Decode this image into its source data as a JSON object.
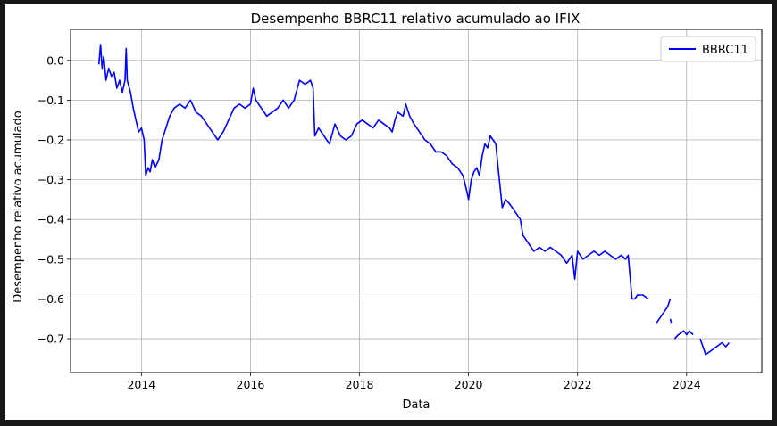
{
  "chart_data": {
    "type": "line",
    "title": "Desempenho BBRC11 relativo acumulado ao IFIX",
    "xlabel": "Data",
    "ylabel": "Desempenho relativo acumulado",
    "xlim": [
      2012.7,
      2025.38
    ],
    "ylim": [
      -0.785,
      0.078
    ],
    "xticks": [
      2014,
      2016,
      2018,
      2020,
      2022,
      2024
    ],
    "xtick_labels": [
      "2014",
      "2016",
      "2018",
      "2020",
      "2022",
      "2024"
    ],
    "yticks": [
      0.0,
      -0.1,
      -0.2,
      -0.3,
      -0.4,
      -0.5,
      -0.6,
      -0.7
    ],
    "ytick_labels": [
      "0.0",
      "−0.1",
      "−0.2",
      "−0.3",
      "−0.4",
      "−0.5",
      "−0.6",
      "−0.7"
    ],
    "grid": true,
    "legend_position": "top-right",
    "series": [
      {
        "name": "BBRC11",
        "color": "#0000ff",
        "segments": [
          [
            [
              2013.22,
              -0.01
            ],
            [
              2013.25,
              0.04
            ],
            [
              2013.28,
              -0.02
            ],
            [
              2013.31,
              0.01
            ],
            [
              2013.35,
              -0.05
            ],
            [
              2013.4,
              -0.02
            ],
            [
              2013.45,
              -0.04
            ],
            [
              2013.5,
              -0.03
            ],
            [
              2013.55,
              -0.07
            ],
            [
              2013.6,
              -0.05
            ],
            [
              2013.65,
              -0.08
            ],
            [
              2013.7,
              -0.05
            ],
            [
              2013.72,
              0.03
            ],
            [
              2013.74,
              -0.05
            ],
            [
              2013.8,
              -0.08
            ],
            [
              2013.85,
              -0.12
            ],
            [
              2013.9,
              -0.15
            ],
            [
              2013.95,
              -0.18
            ],
            [
              2014.0,
              -0.17
            ],
            [
              2014.05,
              -0.2
            ],
            [
              2014.08,
              -0.29
            ],
            [
              2014.12,
              -0.27
            ],
            [
              2014.16,
              -0.28
            ],
            [
              2014.2,
              -0.25
            ],
            [
              2014.25,
              -0.27
            ],
            [
              2014.32,
              -0.25
            ],
            [
              2014.38,
              -0.2
            ],
            [
              2014.45,
              -0.17
            ],
            [
              2014.52,
              -0.14
            ],
            [
              2014.6,
              -0.12
            ],
            [
              2014.7,
              -0.11
            ],
            [
              2014.8,
              -0.12
            ],
            [
              2014.9,
              -0.1
            ],
            [
              2015.0,
              -0.13
            ],
            [
              2015.1,
              -0.14
            ],
            [
              2015.2,
              -0.16
            ],
            [
              2015.3,
              -0.18
            ],
            [
              2015.4,
              -0.2
            ],
            [
              2015.5,
              -0.18
            ],
            [
              2015.6,
              -0.15
            ],
            [
              2015.7,
              -0.12
            ],
            [
              2015.8,
              -0.11
            ],
            [
              2015.9,
              -0.12
            ],
            [
              2016.0,
              -0.11
            ],
            [
              2016.05,
              -0.07
            ],
            [
              2016.1,
              -0.1
            ],
            [
              2016.2,
              -0.12
            ],
            [
              2016.3,
              -0.14
            ],
            [
              2016.4,
              -0.13
            ],
            [
              2016.5,
              -0.12
            ],
            [
              2016.6,
              -0.1
            ],
            [
              2016.7,
              -0.12
            ],
            [
              2016.8,
              -0.1
            ],
            [
              2016.9,
              -0.05
            ],
            [
              2017.0,
              -0.06
            ],
            [
              2017.1,
              -0.05
            ],
            [
              2017.15,
              -0.07
            ],
            [
              2017.18,
              -0.19
            ],
            [
              2017.25,
              -0.17
            ],
            [
              2017.35,
              -0.19
            ],
            [
              2017.45,
              -0.21
            ],
            [
              2017.55,
              -0.16
            ],
            [
              2017.65,
              -0.19
            ],
            [
              2017.75,
              -0.2
            ],
            [
              2017.85,
              -0.19
            ],
            [
              2017.95,
              -0.16
            ],
            [
              2018.05,
              -0.15
            ],
            [
              2018.15,
              -0.16
            ],
            [
              2018.25,
              -0.17
            ],
            [
              2018.35,
              -0.15
            ],
            [
              2018.45,
              -0.16
            ],
            [
              2018.55,
              -0.17
            ],
            [
              2018.6,
              -0.18
            ],
            [
              2018.65,
              -0.15
            ],
            [
              2018.7,
              -0.13
            ],
            [
              2018.8,
              -0.14
            ],
            [
              2018.85,
              -0.11
            ],
            [
              2018.92,
              -0.14
            ],
            [
              2019.0,
              -0.16
            ],
            [
              2019.1,
              -0.18
            ],
            [
              2019.2,
              -0.2
            ],
            [
              2019.3,
              -0.21
            ],
            [
              2019.4,
              -0.23
            ],
            [
              2019.5,
              -0.23
            ],
            [
              2019.6,
              -0.24
            ],
            [
              2019.7,
              -0.26
            ],
            [
              2019.8,
              -0.27
            ],
            [
              2019.9,
              -0.29
            ],
            [
              2019.97,
              -0.33
            ],
            [
              2020.0,
              -0.35
            ],
            [
              2020.05,
              -0.3
            ],
            [
              2020.1,
              -0.28
            ],
            [
              2020.15,
              -0.27
            ],
            [
              2020.2,
              -0.29
            ],
            [
              2020.25,
              -0.24
            ],
            [
              2020.3,
              -0.21
            ],
            [
              2020.35,
              -0.22
            ],
            [
              2020.4,
              -0.19
            ],
            [
              2020.45,
              -0.2
            ],
            [
              2020.5,
              -0.21
            ],
            [
              2020.55,
              -0.28
            ],
            [
              2020.62,
              -0.37
            ],
            [
              2020.68,
              -0.35
            ],
            [
              2020.75,
              -0.36
            ],
            [
              2020.85,
              -0.38
            ],
            [
              2020.95,
              -0.4
            ],
            [
              2021.0,
              -0.44
            ],
            [
              2021.05,
              -0.45
            ],
            [
              2021.1,
              -0.46
            ],
            [
              2021.2,
              -0.48
            ],
            [
              2021.3,
              -0.47
            ],
            [
              2021.4,
              -0.48
            ],
            [
              2021.5,
              -0.47
            ],
            [
              2021.6,
              -0.48
            ],
            [
              2021.7,
              -0.49
            ],
            [
              2021.8,
              -0.51
            ],
            [
              2021.9,
              -0.49
            ],
            [
              2021.95,
              -0.55
            ],
            [
              2022.0,
              -0.48
            ],
            [
              2022.1,
              -0.5
            ],
            [
              2022.2,
              -0.49
            ],
            [
              2022.3,
              -0.48
            ],
            [
              2022.4,
              -0.49
            ],
            [
              2022.5,
              -0.48
            ],
            [
              2022.6,
              -0.49
            ],
            [
              2022.7,
              -0.5
            ],
            [
              2022.8,
              -0.49
            ],
            [
              2022.88,
              -0.5
            ],
            [
              2022.93,
              -0.49
            ],
            [
              2023.0,
              -0.6
            ],
            [
              2023.05,
              -0.6
            ],
            [
              2023.1,
              -0.59
            ],
            [
              2023.2,
              -0.59
            ],
            [
              2023.3,
              -0.6
            ]
          ],
          [
            [
              2023.45,
              -0.66
            ],
            [
              2023.5,
              -0.65
            ],
            [
              2023.55,
              -0.64
            ],
            [
              2023.6,
              -0.63
            ],
            [
              2023.65,
              -0.62
            ],
            [
              2023.7,
              -0.6
            ]
          ],
          [
            [
              2023.7,
              -0.65
            ],
            [
              2023.72,
              -0.66
            ]
          ],
          [
            [
              2023.78,
              -0.7
            ],
            [
              2023.85,
              -0.69
            ],
            [
              2023.95,
              -0.68
            ],
            [
              2024.0,
              -0.69
            ],
            [
              2024.05,
              -0.68
            ],
            [
              2024.12,
              -0.69
            ]
          ],
          [
            [
              2024.25,
              -0.7
            ],
            [
              2024.3,
              -0.72
            ],
            [
              2024.35,
              -0.74
            ],
            [
              2024.45,
              -0.73
            ],
            [
              2024.55,
              -0.72
            ],
            [
              2024.65,
              -0.71
            ],
            [
              2024.72,
              -0.72
            ],
            [
              2024.78,
              -0.71
            ]
          ]
        ]
      }
    ]
  }
}
